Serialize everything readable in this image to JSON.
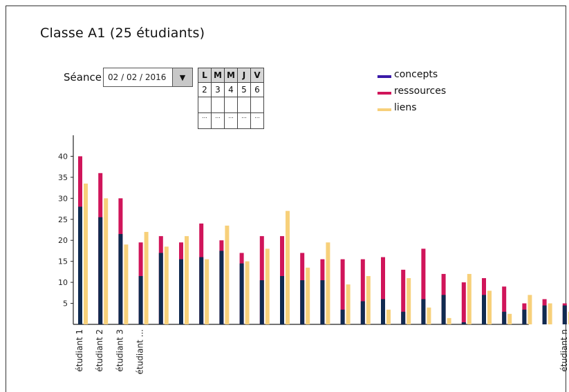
{
  "title": "Classe A1 (25 étudiants)",
  "seance": {
    "label": "Séance",
    "date": "02 / 02 / 2016",
    "dropdown_icon": "triangle-down"
  },
  "calendar": {
    "headers": [
      "L",
      "M",
      "M",
      "J",
      "V"
    ],
    "days": [
      "2",
      "3",
      "4",
      "5",
      "6"
    ],
    "more": [
      "...",
      "...",
      "...",
      "...",
      "..."
    ]
  },
  "colors": {
    "concepts": "#102a50",
    "ressources": "#d0155a",
    "liens": "#f7d07a",
    "legend_concepts": "#3a1aa8"
  },
  "chart_data": {
    "type": "bar",
    "stacked_series": [
      "concepts",
      "ressources"
    ],
    "ylim": [
      0,
      45
    ],
    "yticks": [
      5,
      10,
      15,
      20,
      25,
      30,
      35,
      40
    ],
    "legend": [
      "concepts",
      "ressources",
      "liens"
    ],
    "categories": [
      "étudiant 1",
      "étudiant 2",
      "étudiant 3",
      "étudiant ...",
      "",
      "",
      "",
      "",
      "",
      "",
      "",
      "",
      "",
      "",
      "",
      "",
      "",
      "",
      "",
      "",
      "",
      "",
      "",
      "",
      "étudiant n"
    ],
    "series": [
      {
        "name": "concepts",
        "values": [
          28,
          25.5,
          21.5,
          11.5,
          17,
          15.5,
          16,
          17.5,
          14.5,
          10.5,
          11.5,
          10.5,
          10.5,
          3.5,
          5.5,
          6,
          3,
          6,
          7,
          0.5,
          7,
          3,
          3.5,
          4.5,
          4.5
        ]
      },
      {
        "name": "ressources",
        "values": [
          40,
          36,
          30,
          19.5,
          21,
          19.5,
          24,
          20,
          17,
          21,
          21,
          17,
          15.5,
          15.5,
          15.5,
          16,
          13,
          18,
          12,
          10,
          11,
          9,
          5,
          6,
          5
        ]
      },
      {
        "name": "liens",
        "values": [
          33.5,
          30,
          19,
          22,
          18.5,
          21,
          15.5,
          23.5,
          15,
          18,
          27,
          13.5,
          19.5,
          9.5,
          11.5,
          3.5,
          11,
          4,
          1.5,
          12,
          8,
          2.5,
          7,
          5,
          3
        ]
      }
    ]
  }
}
